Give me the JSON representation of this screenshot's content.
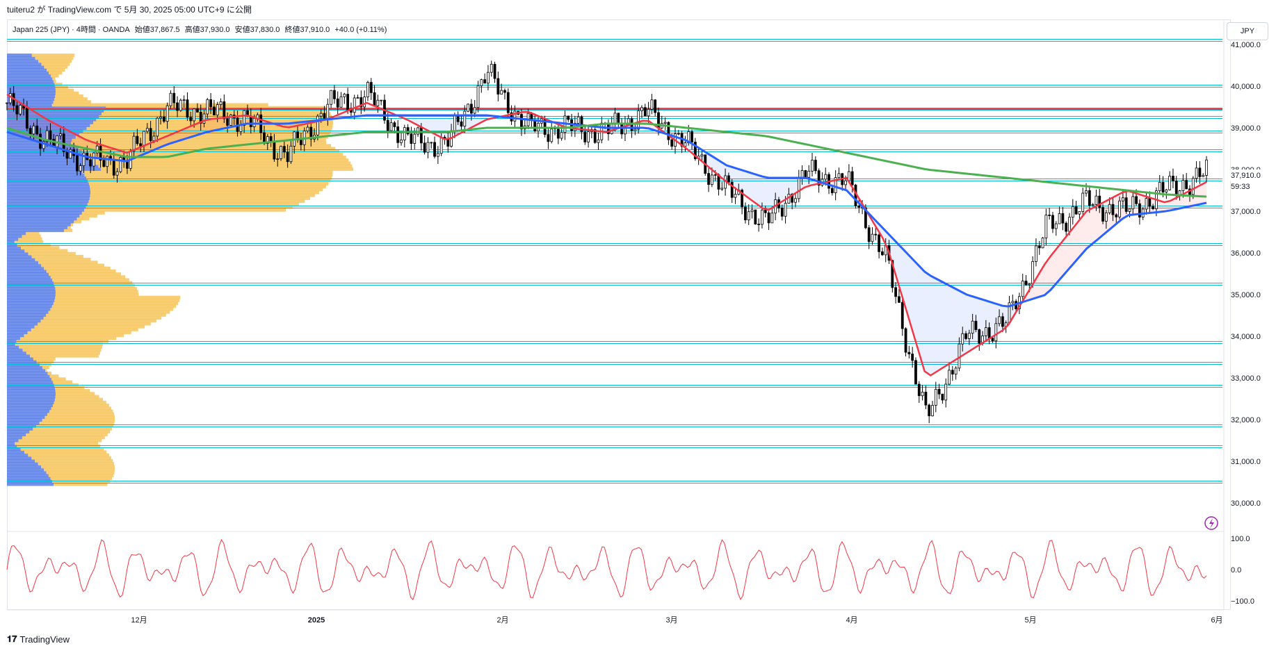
{
  "header": {
    "publish_info": "tuiteru2 が TradingView.com で 5月 30, 2025 05:00 UTC+9 に公開"
  },
  "legend": {
    "symbol": "Japan 225 (JPY) · 4時間 · OANDA",
    "open": "始値37,867.5",
    "high": "高値37,930.0",
    "low": "安値37,830.0",
    "close": "終値37,910.0",
    "change": "+40.0 (+0.11%)"
  },
  "currency_button": "JPY",
  "price_axis": [
    "41,000.0",
    "40,000.0",
    "39,000.0",
    "38,000.0",
    "37,000.0",
    "36,000.0",
    "35,000.0",
    "34,000.0",
    "33,000.0",
    "32,000.0",
    "31,000.0",
    "30,000.0"
  ],
  "last_price_label": "37,910.0",
  "countdown_label": "59:33",
  "oscillator_axis": [
    "100.0",
    "0.0",
    "−100.0"
  ],
  "time_axis": [
    "12月",
    "2025",
    "2月",
    "3月",
    "4月",
    "5月",
    "6月"
  ],
  "footer": {
    "brand": "TradingView"
  },
  "colors": {
    "candle": "#000000",
    "ma_fast": "#f23645",
    "ma_mid": "#2962ff",
    "ma_slow": "#4caf50",
    "hline": "#00bcd4",
    "resistance": "#f23645",
    "vp_up": "#5b7fe8",
    "vp_down": "#f7c55c",
    "oscillator": "#f23645"
  },
  "chart_data": {
    "type": "candlestick",
    "timeframe": "4H",
    "ylim": [
      29400,
      41600
    ],
    "x": [
      "2024-11-05",
      "2024-11-12",
      "2024-11-19",
      "2024-11-26",
      "2024-12-03",
      "2024-12-10",
      "2024-12-17",
      "2024-12-24",
      "2024-12-31",
      "2025-01-07",
      "2025-01-14",
      "2025-01-21",
      "2025-01-28",
      "2025-02-04",
      "2025-02-11",
      "2025-02-18",
      "2025-02-25",
      "2025-03-04",
      "2025-03-11",
      "2025-03-18",
      "2025-03-25",
      "2025-04-01",
      "2025-04-07",
      "2025-04-14",
      "2025-04-21",
      "2025-04-28",
      "2025-05-05",
      "2025-05-12",
      "2025-05-19",
      "2025-05-26",
      "2025-05-30"
    ],
    "series": [
      {
        "name": "close",
        "values": [
          39600,
          38700,
          38200,
          38200,
          39500,
          39400,
          39200,
          38300,
          39500,
          39800,
          38700,
          38600,
          40300,
          39000,
          39000,
          38900,
          39400,
          38600,
          37500,
          36700,
          37900,
          37700,
          35800,
          32000,
          34000,
          34300,
          36600,
          37200,
          37000,
          37500,
          37910
        ]
      },
      {
        "name": "ma_fast",
        "values": [
          39800,
          39200,
          38700,
          38400,
          38800,
          39200,
          39300,
          39000,
          39200,
          39600,
          39200,
          38700,
          39200,
          39400,
          39000,
          38900,
          39200,
          38500,
          37700,
          37000,
          37600,
          37800,
          36200,
          33000,
          33600,
          34200,
          35800,
          37000,
          37500,
          37200,
          37700
        ]
      },
      {
        "name": "ma_mid",
        "values": [
          38900,
          38600,
          38300,
          38200,
          38600,
          38900,
          39100,
          39100,
          39200,
          39300,
          39300,
          39300,
          39300,
          39200,
          39100,
          39000,
          39000,
          38700,
          38100,
          37800,
          37800,
          37500,
          36500,
          35500,
          35000,
          34700,
          35000,
          36100,
          36900,
          37000,
          37200
        ]
      },
      {
        "name": "ma_slow",
        "values": [
          39000,
          38700,
          38500,
          38300,
          38300,
          38500,
          38600,
          38700,
          38800,
          38900,
          38900,
          38900,
          39000,
          39000,
          39000,
          39100,
          39100,
          39000,
          38900,
          38800,
          38600,
          38400,
          38200,
          38000,
          37900,
          37800,
          37700,
          37600,
          37500,
          37400,
          37350
        ]
      }
    ],
    "horizontal_levels": [
      41100,
      40000,
      39450,
      39250,
      38900,
      38450,
      37750,
      37100,
      36200,
      35250,
      33850,
      33350,
      32800,
      31850,
      31350,
      30500
    ],
    "resistance_level": 39450,
    "oscillator": {
      "ylim": [
        -100,
        100
      ],
      "ticks": [
        100,
        0,
        -100
      ]
    }
  }
}
